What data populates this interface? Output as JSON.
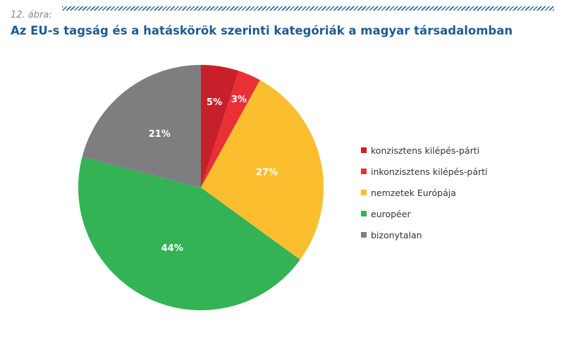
{
  "figure_label": "12. ábra:",
  "title": "Az EU-s tagság és a hatáskörök szerinti kategóriák a magyar társadalomban",
  "chart_data": {
    "type": "pie",
    "title": "Az EU-s tagság és a hatáskörök szerinti kategóriák a magyar társadalomban",
    "categories": [
      "konzisztens kilépés-párti",
      "inkonzisztens kilépés-párti",
      "nemzetek Európája",
      "européer",
      "bizonytalan"
    ],
    "values": [
      5,
      3,
      27,
      44,
      21
    ],
    "labels": [
      "5%",
      "3%",
      "27%",
      "44%",
      "21%"
    ],
    "colors": [
      "#c8202b",
      "#ea2f36",
      "#fbbe2f",
      "#33b356",
      "#7e7e80"
    ],
    "start_angle_deg": 0,
    "direction": "clockwise",
    "legend_position": "right"
  }
}
